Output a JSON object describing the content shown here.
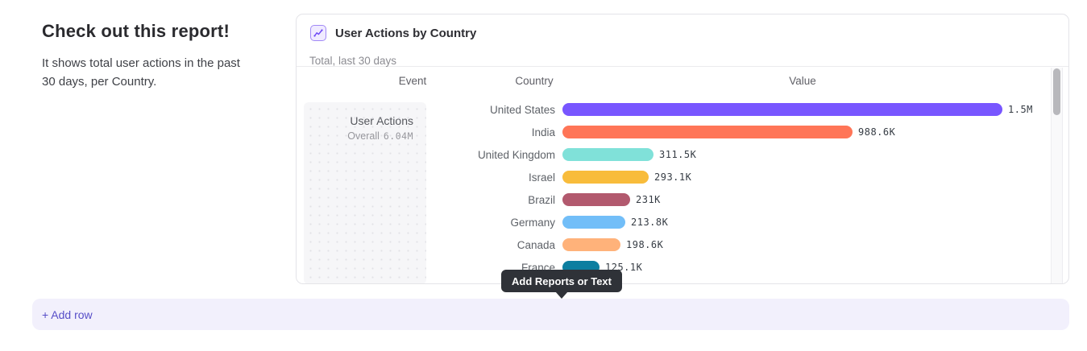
{
  "page": {
    "heading": "Check out this report!",
    "description": "It shows total user actions in the past 30 days, per Country."
  },
  "report_card": {
    "icon": "insights-line-chart-icon",
    "title": "User Actions by Country",
    "subtitle": "Total, last 30 days",
    "columns": {
      "event": "Event",
      "country": "Country",
      "value": "Value"
    },
    "event_cell": {
      "name": "User Actions",
      "overall_label": "Overall",
      "overall_value": "6.04M"
    }
  },
  "chart_data": {
    "type": "bar",
    "orientation": "horizontal",
    "title": "User Actions by Country",
    "subtitle": "Total, last 30 days",
    "series_name": "User Actions",
    "overall_total": "6.04M",
    "categories": [
      "United States",
      "India",
      "United Kingdom",
      "Israel",
      "Brazil",
      "Germany",
      "Canada",
      "France"
    ],
    "values": [
      1500000,
      988600,
      311500,
      293100,
      231000,
      213800,
      198600,
      125100
    ],
    "value_labels": [
      "1.5M",
      "988.6K",
      "311.5K",
      "293.1K",
      "231K",
      "213.8K",
      "198.6K",
      "125.1K"
    ],
    "bar_colors": [
      "#7856FF",
      "#FF7557",
      "#80E1D9",
      "#F8BC3B",
      "#B2596E",
      "#72BEF8",
      "#FFB27A",
      "#0D7EA0"
    ],
    "xlim": [
      0,
      1500000
    ],
    "legend": "none",
    "grid": false
  },
  "tooltip": {
    "label": "Add Reports or Text"
  },
  "add_row": {
    "label": "+ Add row"
  },
  "colors": {
    "accent_purple": "#7856FF",
    "add_row_text": "#574ec8",
    "add_row_bg": "#f2f0fc",
    "tooltip_bg": "#2f3238",
    "card_border": "#e4e4e8"
  }
}
